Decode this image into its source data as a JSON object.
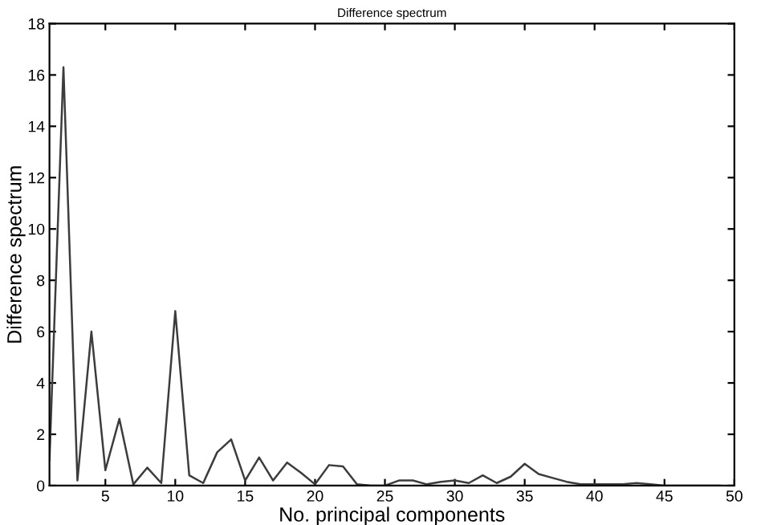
{
  "chart_data": {
    "type": "line",
    "title": "Difference spectrum",
    "xlabel": "No. principal components",
    "ylabel": "Difference spectrum",
    "x": [
      1,
      2,
      3,
      4,
      5,
      6,
      7,
      8,
      9,
      10,
      11,
      12,
      13,
      14,
      15,
      16,
      17,
      18,
      19,
      20,
      21,
      22,
      23,
      24,
      25,
      26,
      27,
      28,
      29,
      30,
      31,
      32,
      33,
      34,
      35,
      36,
      37,
      38,
      39,
      40,
      41,
      42,
      43,
      44,
      45,
      46,
      47,
      48,
      49
    ],
    "series": [
      {
        "color": "#3c3c3c",
        "values": [
          1.0,
          16.3,
          0.2,
          6.0,
          0.6,
          2.6,
          0.05,
          0.7,
          0.1,
          6.8,
          0.4,
          0.1,
          1.3,
          1.8,
          0.2,
          1.1,
          0.2,
          0.9,
          0.5,
          0.05,
          0.8,
          0.75,
          0.05,
          0,
          0,
          0.2,
          0.2,
          0.05,
          0.15,
          0.2,
          0.1,
          0.4,
          0.1,
          0.35,
          0.85,
          0.45,
          0.3,
          0.15,
          0.05,
          0.05,
          0.05,
          0.05,
          0.1,
          0.05,
          0,
          0,
          0,
          0,
          0
        ]
      }
    ],
    "xlim": [
      1,
      50
    ],
    "xticks": [
      5,
      10,
      15,
      20,
      25,
      30,
      35,
      40,
      45,
      50
    ],
    "ylim": [
      0,
      18
    ],
    "yticks": [
      0,
      2,
      4,
      6,
      8,
      10,
      12,
      14,
      16,
      18
    ],
    "grid": false,
    "legend": false,
    "marker": "none",
    "line_style": "solid"
  }
}
